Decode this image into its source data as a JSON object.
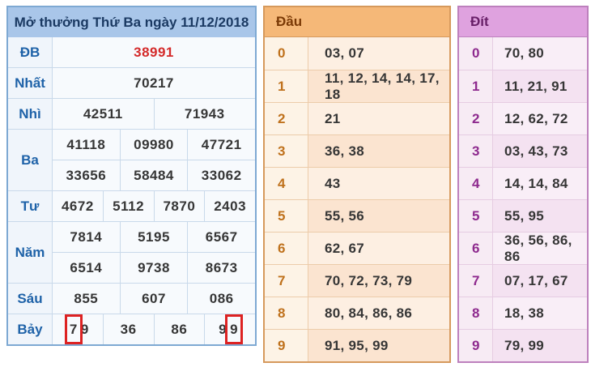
{
  "colors": {
    "results_accent": "#a9c6e9",
    "special_prize_red": "#d42a2a",
    "highlight_box_red": "#dd2222",
    "dau_accent": "#f5b878",
    "dit_accent": "#dfa2df"
  },
  "results_table": {
    "title": "Mở thưởng Thứ Ba ngày 11/12/2018",
    "rows": [
      {
        "label": "ĐB",
        "special": true,
        "groups": [
          [
            "38991"
          ]
        ]
      },
      {
        "label": "Nhất",
        "special": false,
        "groups": [
          [
            "70217"
          ]
        ]
      },
      {
        "label": "Nhì",
        "special": false,
        "groups": [
          [
            "42511",
            "71943"
          ]
        ]
      },
      {
        "label": "Ba",
        "special": false,
        "groups": [
          [
            "41118",
            "09980",
            "47721"
          ],
          [
            "33656",
            "58484",
            "33062"
          ]
        ]
      },
      {
        "label": "Tư",
        "special": false,
        "groups": [
          [
            "4672",
            "5112",
            "7870",
            "2403"
          ]
        ]
      },
      {
        "label": "Năm",
        "special": false,
        "groups": [
          [
            "7814",
            "5195",
            "6567"
          ],
          [
            "6514",
            "9738",
            "8673"
          ]
        ]
      },
      {
        "label": "Sáu",
        "special": false,
        "groups": [
          [
            "855",
            "607",
            "086"
          ]
        ]
      },
      {
        "label": "Bảy",
        "special": false,
        "groups": [
          [
            "79",
            "36",
            "86",
            "99"
          ]
        ]
      }
    ],
    "highlights": [
      {
        "row": 7,
        "group": 0,
        "cell": 0,
        "char": 0
      },
      {
        "row": 7,
        "group": 0,
        "cell": 3,
        "char": 1
      }
    ]
  },
  "dau_table": {
    "header": "Đầu",
    "rows": [
      {
        "digit": "0",
        "values": "03, 07"
      },
      {
        "digit": "1",
        "values": "11, 12, 14, 14, 17, 18"
      },
      {
        "digit": "2",
        "values": "21"
      },
      {
        "digit": "3",
        "values": "36, 38"
      },
      {
        "digit": "4",
        "values": "43"
      },
      {
        "digit": "5",
        "values": "55, 56"
      },
      {
        "digit": "6",
        "values": "62, 67"
      },
      {
        "digit": "7",
        "values": "70, 72, 73, 79"
      },
      {
        "digit": "8",
        "values": "80, 84, 86, 86"
      },
      {
        "digit": "9",
        "values": "91, 95, 99"
      }
    ]
  },
  "dit_table": {
    "header": "Đít",
    "rows": [
      {
        "digit": "0",
        "values": "70, 80"
      },
      {
        "digit": "1",
        "values": "11, 21, 91"
      },
      {
        "digit": "2",
        "values": "12, 62, 72"
      },
      {
        "digit": "3",
        "values": "03, 43, 73"
      },
      {
        "digit": "4",
        "values": "14, 14, 84"
      },
      {
        "digit": "5",
        "values": "55, 95"
      },
      {
        "digit": "6",
        "values": "36, 56, 86, 86"
      },
      {
        "digit": "7",
        "values": "07, 17, 67"
      },
      {
        "digit": "8",
        "values": "18, 38"
      },
      {
        "digit": "9",
        "values": "79, 99"
      }
    ]
  }
}
